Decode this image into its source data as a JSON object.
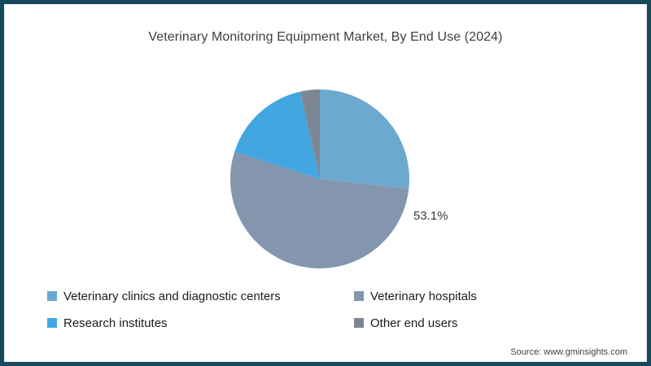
{
  "frame": {
    "border_color": "#17495e",
    "background_color": "#ffffff"
  },
  "title": "Veterinary Monitoring Equipment Market, By End Use (2024)",
  "source": "Source: www.gminsights.com",
  "chart_data": {
    "type": "pie",
    "title": "Veterinary Monitoring Equipment Market, By End Use (2024)",
    "start_angle_deg_from_top": 0,
    "direction": "clockwise",
    "legend_position": "bottom",
    "legend_columns": 2,
    "slices": [
      {
        "label": "Veterinary clinics and diagnostic centers",
        "value": 26.8,
        "color": "#6ca9ce",
        "data_label": ""
      },
      {
        "label": "Veterinary hospitals",
        "value": 53.1,
        "color": "#8495ae",
        "data_label": "53.1%"
      },
      {
        "label": "Research institutes",
        "value": 16.6,
        "color": "#42a7e0",
        "data_label": ""
      },
      {
        "label": "Other end users",
        "value": 3.5,
        "color": "#7d8794",
        "data_label": ""
      }
    ],
    "notes": "Only the Veterinary hospitals slice is labeled (53.1%), placed outside the pie at its right."
  }
}
